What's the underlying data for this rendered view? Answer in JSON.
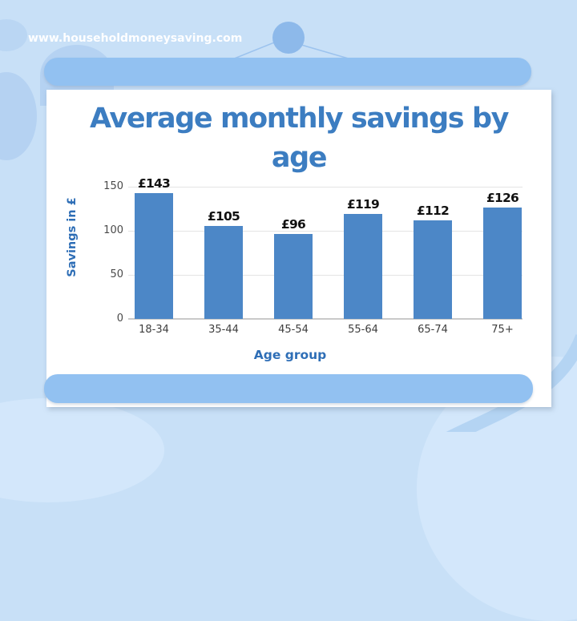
{
  "site": {
    "url_label": "www.householdmoneysaving.com"
  },
  "colors": {
    "background": "#c8e0f7",
    "rail": "#92c1f1",
    "panel": "#ffffff",
    "title_text": "#3c7dc1",
    "axis_title_text": "#2e6eb6",
    "bar_fill": "#4c87c7",
    "value_label_text": "#111111",
    "tick_text": "#3d3d3d"
  },
  "chart_data": {
    "type": "bar",
    "title": "Average monthly savings by age",
    "title_lines": [
      "Average monthly savings by",
      "age"
    ],
    "categories": [
      "18-34",
      "35-44",
      "45-54",
      "55-64",
      "65-74",
      "75+"
    ],
    "values": [
      143,
      105,
      96,
      119,
      112,
      126
    ],
    "value_labels": [
      "£143",
      "£105",
      "£96",
      "£119",
      "£112",
      "£126"
    ],
    "xlabel": "Age group",
    "ylabel": "Savings in £",
    "yticks": [
      0,
      50,
      100,
      150
    ],
    "ylim": [
      0,
      150
    ],
    "grid": true,
    "legend": false
  }
}
